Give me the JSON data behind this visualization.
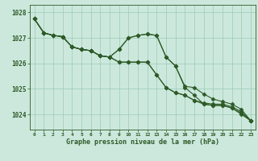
{
  "title": "Graphe pression niveau de la mer (hPa)",
  "xlabel_hours": [
    0,
    1,
    2,
    3,
    4,
    5,
    6,
    7,
    8,
    9,
    10,
    11,
    12,
    13,
    14,
    15,
    16,
    17,
    18,
    19,
    20,
    21,
    22,
    23
  ],
  "ylim": [
    1023.4,
    1028.3
  ],
  "yticks": [
    1024,
    1025,
    1026,
    1027,
    1028
  ],
  "bg_color": "#cce8dc",
  "grid_color": "#99ccb3",
  "line_color": "#2d5a27",
  "line1": [
    1027.75,
    1027.2,
    1027.1,
    1027.05,
    1026.65,
    1026.55,
    1026.5,
    1026.3,
    1026.25,
    1026.55,
    1027.0,
    1027.1,
    1027.15,
    1027.1,
    1026.25,
    1025.9,
    1025.1,
    1025.05,
    1024.8,
    1024.6,
    1024.5,
    1024.4,
    1024.2,
    1023.75
  ],
  "line2": [
    1027.75,
    1027.2,
    1027.1,
    1027.05,
    1026.65,
    1026.55,
    1026.5,
    1026.3,
    1026.25,
    1026.05,
    1026.05,
    1026.05,
    1026.05,
    1025.55,
    1025.05,
    1024.85,
    1024.75,
    1024.55,
    1024.45,
    1024.4,
    1024.4,
    1024.3,
    1024.1,
    1023.75
  ],
  "line3": [
    1027.75,
    1027.2,
    1027.1,
    1027.05,
    1026.65,
    1026.55,
    1026.5,
    1026.3,
    1026.25,
    1026.05,
    1026.05,
    1026.05,
    1026.05,
    1025.55,
    1025.05,
    1024.85,
    1024.75,
    1024.55,
    1024.4,
    1024.35,
    1024.35,
    1024.25,
    1024.05,
    1023.75
  ],
  "line4": [
    1027.75,
    1027.2,
    1027.1,
    1027.05,
    1026.65,
    1026.55,
    1026.5,
    1026.3,
    1026.25,
    1026.55,
    1027.0,
    1027.1,
    1027.15,
    1027.1,
    1026.25,
    1025.9,
    1025.05,
    1024.75,
    1024.4,
    1024.35,
    1024.35,
    1024.25,
    1024.0,
    1023.75
  ],
  "marker": "D",
  "markersize": 2.5,
  "linewidth": 0.8
}
